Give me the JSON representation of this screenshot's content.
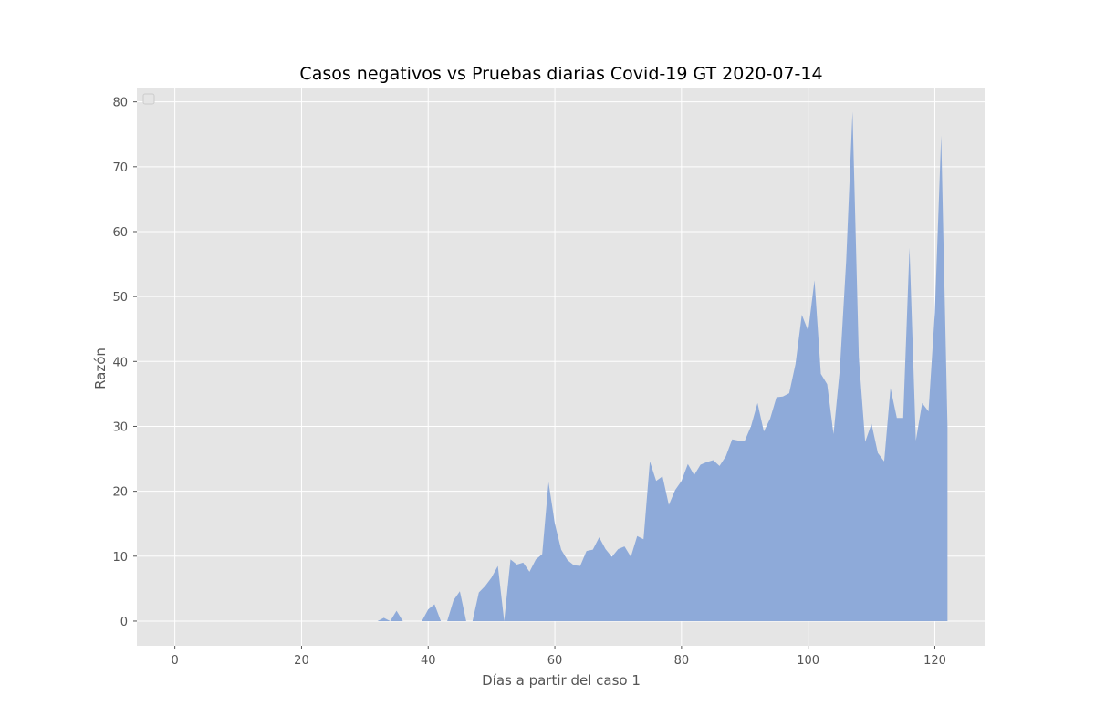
{
  "chart_data": {
    "type": "area",
    "title": "Casos negativos vs Pruebas diarias Covid-19 GT 2020-07-14",
    "xlabel": "Días a partir del caso 1",
    "ylabel": "Razón",
    "xlim": [
      -6,
      128
    ],
    "ylim": [
      -3.8,
      82.2
    ],
    "xticks": [
      0,
      20,
      40,
      60,
      80,
      100,
      120
    ],
    "yticks": [
      0,
      10,
      20,
      30,
      40,
      50,
      60,
      70,
      80
    ],
    "grid": true,
    "legend": "top-left (empty)",
    "colors": {
      "area": "#8eaad9",
      "background": "#e5e5e5",
      "grid": "#ffffff"
    },
    "series": [
      {
        "x": [
          0,
          1,
          2,
          3,
          4,
          5,
          6,
          7,
          8,
          9,
          10,
          11,
          12,
          13,
          14,
          15,
          16,
          17,
          18,
          19,
          20,
          21,
          22,
          23,
          24,
          25,
          26,
          27,
          28,
          29,
          30,
          31,
          32,
          33,
          34,
          35,
          36,
          37,
          38,
          39,
          40,
          41,
          42,
          43,
          44,
          45,
          46,
          47,
          48,
          49,
          50,
          51,
          52,
          53,
          54,
          55,
          56,
          57,
          58,
          59,
          60,
          61,
          62,
          63,
          64,
          65,
          66,
          67,
          68,
          69,
          70,
          71,
          72,
          73,
          74,
          75,
          76,
          77,
          78,
          79,
          80,
          81,
          82,
          83,
          84,
          85,
          86,
          87,
          88,
          89,
          90,
          91,
          92,
          93,
          94,
          95,
          96,
          97,
          98,
          99,
          100,
          101,
          102,
          103,
          104,
          105,
          106,
          107,
          108,
          109,
          110,
          111,
          112,
          113,
          114,
          115,
          116,
          117,
          118,
          119,
          120,
          121,
          122
        ],
        "values": [
          0,
          0,
          0,
          0,
          0,
          0,
          0,
          0,
          0,
          0,
          0,
          0,
          0,
          0,
          0,
          0,
          0,
          0,
          0,
          0,
          0,
          0,
          0,
          0,
          0,
          0,
          0,
          0,
          0,
          0,
          0,
          0,
          0,
          0.5,
          0,
          1.6,
          0,
          0,
          0,
          0,
          1.8,
          2.6,
          0,
          0,
          3.2,
          4.6,
          0,
          0,
          4.4,
          5.4,
          6.7,
          8.5,
          0,
          9.5,
          8.7,
          9,
          7.6,
          9.5,
          10.3,
          21.4,
          15,
          11,
          9.4,
          8.6,
          8.5,
          10.8,
          11,
          12.9,
          11.1,
          9.9,
          11.1,
          11.5,
          9.9,
          13.1,
          12.6,
          24.6,
          21.6,
          22.3,
          17.9,
          20.2,
          21.6,
          24.2,
          22.5,
          24.1,
          24.5,
          24.8,
          23.9,
          25.4,
          28,
          27.8,
          27.8,
          30.1,
          33.6,
          29.2,
          31.2,
          34.5,
          34.6,
          35.1,
          39.6,
          47.2,
          44.7,
          52.5,
          38.1,
          36.5,
          28.8,
          38.8,
          55.5,
          78.5,
          40.6,
          27.6,
          30.4,
          25.9,
          24.6,
          35.9,
          31.3,
          31.3,
          57.5,
          27.8,
          33.6,
          32.3,
          47.5,
          74.8,
          29.9
        ]
      }
    ]
  }
}
